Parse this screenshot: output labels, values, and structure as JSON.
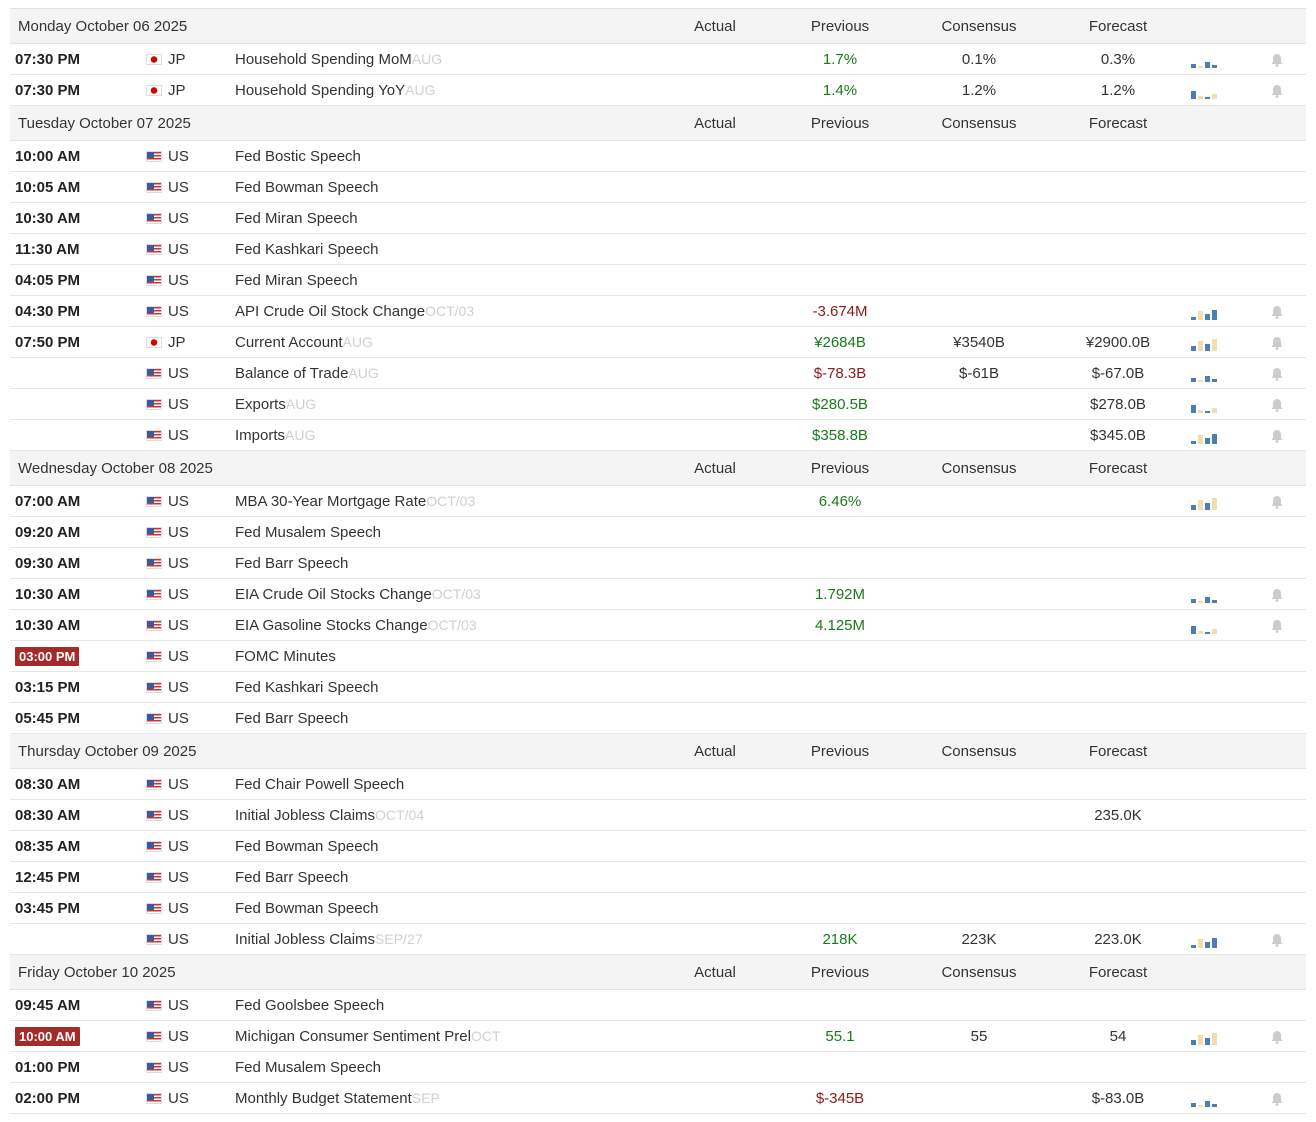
{
  "columns": [
    "Actual",
    "Previous",
    "Consensus",
    "Forecast"
  ],
  "days": [
    {
      "date": "Monday October 06 2025",
      "events": [
        {
          "time": "07:30 PM",
          "country": "JP",
          "event": "Household Spending MoM",
          "period": "AUG",
          "previous": "1.7%",
          "previous_color": "up",
          "consensus": "0.1%",
          "forecast": "0.3%",
          "chart": true
        },
        {
          "time": "07:30 PM",
          "country": "JP",
          "event": "Household Spending YoY",
          "period": "AUG",
          "previous": "1.4%",
          "previous_color": "up",
          "consensus": "1.2%",
          "forecast": "1.2%",
          "chart": true
        }
      ]
    },
    {
      "date": "Tuesday October 07 2025",
      "events": [
        {
          "time": "10:00 AM",
          "country": "US",
          "event": "Fed Bostic Speech"
        },
        {
          "time": "10:05 AM",
          "country": "US",
          "event": "Fed Bowman Speech"
        },
        {
          "time": "10:30 AM",
          "country": "US",
          "event": "Fed Miran Speech"
        },
        {
          "time": "11:30 AM",
          "country": "US",
          "event": "Fed Kashkari Speech"
        },
        {
          "time": "04:05 PM",
          "country": "US",
          "event": "Fed Miran Speech"
        },
        {
          "time": "04:30 PM",
          "country": "US",
          "event": "API Crude Oil Stock Change",
          "period": "OCT/03",
          "previous": "-3.674M",
          "previous_color": "down",
          "chart": true
        },
        {
          "time": "07:50 PM",
          "country": "JP",
          "event": "Current Account",
          "period": "AUG",
          "previous": "¥2684B",
          "previous_color": "up",
          "consensus": "¥3540B",
          "forecast": "¥2900.0B",
          "chart": true
        },
        {
          "country": "US",
          "event": "Balance of Trade",
          "period": "AUG",
          "previous": "$-78.3B",
          "previous_color": "down",
          "consensus": "$-61B",
          "forecast": "$-67.0B",
          "chart": true
        },
        {
          "country": "US",
          "event": "Exports",
          "period": "AUG",
          "previous": "$280.5B",
          "previous_color": "up",
          "forecast": "$278.0B",
          "chart": true
        },
        {
          "country": "US",
          "event": "Imports",
          "period": "AUG",
          "previous": "$358.8B",
          "previous_color": "up",
          "forecast": "$345.0B",
          "chart": true
        }
      ]
    },
    {
      "date": "Wednesday October 08 2025",
      "events": [
        {
          "time": "07:00 AM",
          "country": "US",
          "event": "MBA 30-Year Mortgage Rate",
          "period": "OCT/03",
          "previous": "6.46%",
          "previous_color": "up",
          "chart": true
        },
        {
          "time": "09:20 AM",
          "country": "US",
          "event": "Fed Musalem Speech"
        },
        {
          "time": "09:30 AM",
          "country": "US",
          "event": "Fed Barr Speech"
        },
        {
          "time": "10:30 AM",
          "country": "US",
          "event": "EIA Crude Oil Stocks Change",
          "period": "OCT/03",
          "previous": "1.792M",
          "previous_color": "up",
          "chart": true
        },
        {
          "time": "10:30 AM",
          "country": "US",
          "event": "EIA Gasoline Stocks Change",
          "period": "OCT/03",
          "previous": "4.125M",
          "previous_color": "up",
          "chart": true
        },
        {
          "time": "03:00 PM",
          "highlight": true,
          "country": "US",
          "event": "FOMC Minutes"
        },
        {
          "time": "03:15 PM",
          "country": "US",
          "event": "Fed Kashkari Speech"
        },
        {
          "time": "05:45 PM",
          "country": "US",
          "event": "Fed Barr Speech"
        }
      ]
    },
    {
      "date": "Thursday October 09 2025",
      "events": [
        {
          "time": "08:30 AM",
          "country": "US",
          "event": "Fed Chair Powell Speech"
        },
        {
          "time": "08:30 AM",
          "country": "US",
          "event": "Initial Jobless Claims",
          "period": "OCT/04",
          "forecast": "235.0K"
        },
        {
          "time": "08:35 AM",
          "country": "US",
          "event": "Fed Bowman Speech"
        },
        {
          "time": "12:45 PM",
          "country": "US",
          "event": "Fed Barr Speech"
        },
        {
          "time": "03:45 PM",
          "country": "US",
          "event": "Fed Bowman Speech"
        },
        {
          "country": "US",
          "event": "Initial Jobless Claims",
          "period": "SEP/27",
          "previous": "218K",
          "previous_color": "up",
          "consensus": "223K",
          "forecast": "223.0K",
          "chart": true
        }
      ]
    },
    {
      "date": "Friday October 10 2025",
      "events": [
        {
          "time": "09:45 AM",
          "country": "US",
          "event": "Fed Goolsbee Speech"
        },
        {
          "time": "10:00 AM",
          "highlight": true,
          "country": "US",
          "event": "Michigan Consumer Sentiment Prel",
          "period": "OCT",
          "previous": "55.1",
          "previous_color": "up",
          "consensus": "55",
          "forecast": "54",
          "chart": true
        },
        {
          "time": "01:00 PM",
          "country": "US",
          "event": "Fed Musalem Speech"
        },
        {
          "time": "02:00 PM",
          "country": "US",
          "event": "Monthly Budget Statement",
          "period": "SEP",
          "previous": "$-345B",
          "previous_color": "down",
          "forecast": "$-83.0B",
          "chart": true
        }
      ]
    }
  ]
}
